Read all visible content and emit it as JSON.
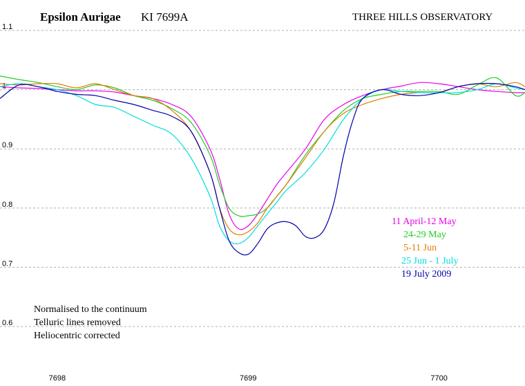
{
  "chart_data": {
    "type": "line",
    "title": "Epsilon Aurigae",
    "subtitle": "KI 7699A",
    "observatory": "THREE HILLS OBSERVATORY",
    "xlabel": "",
    "ylabel": "",
    "xlim": [
      7697.7,
      7700.45
    ],
    "ylim": [
      0.6,
      1.1
    ],
    "xticks": [
      7698,
      7699,
      7700
    ],
    "yticks": [
      0.6,
      0.7,
      0.8,
      0.9,
      1.0,
      1.1
    ],
    "ytick_labels": [
      "0.6",
      "0.7",
      "0.8",
      "0.9",
      "1",
      "1.1"
    ],
    "grid": "horizontal dashed",
    "legend_position": "right",
    "notes": [
      "Normalised to the continuum",
      "Telluric lines removed",
      "Heliocentric corrected"
    ],
    "series": [
      {
        "name": "11 April-12 May",
        "color": "#e600e6",
        "x": [
          7697.7,
          7697.8,
          7697.9,
          7698.0,
          7698.1,
          7698.2,
          7698.3,
          7698.4,
          7698.5,
          7698.6,
          7698.7,
          7698.8,
          7698.85,
          7698.9,
          7698.95,
          7699.0,
          7699.05,
          7699.1,
          7699.15,
          7699.2,
          7699.3,
          7699.4,
          7699.5,
          7699.6,
          7699.7,
          7699.8,
          7699.9,
          7700.0,
          7700.1,
          7700.2,
          7700.3,
          7700.4,
          7700.45
        ],
        "y": [
          1.005,
          1.003,
          1.002,
          1.0,
          0.998,
          0.998,
          0.996,
          0.99,
          0.985,
          0.975,
          0.955,
          0.9,
          0.85,
          0.79,
          0.765,
          0.77,
          0.79,
          0.815,
          0.84,
          0.86,
          0.9,
          0.95,
          0.975,
          0.99,
          1.0,
          1.006,
          1.012,
          1.01,
          1.005,
          1.0,
          0.997,
          0.995,
          0.995
        ]
      },
      {
        "name": "24-29 May",
        "color": "#22cc22",
        "x": [
          7697.7,
          7697.8,
          7697.9,
          7698.0,
          7698.1,
          7698.2,
          7698.3,
          7698.4,
          7698.5,
          7698.6,
          7698.7,
          7698.8,
          7698.85,
          7698.9,
          7698.95,
          7699.0,
          7699.05,
          7699.1,
          7699.15,
          7699.2,
          7699.3,
          7699.4,
          7699.5,
          7699.6,
          7699.7,
          7699.8,
          7699.9,
          7700.0,
          7700.1,
          7700.2,
          7700.3,
          7700.4,
          7700.45
        ],
        "y": [
          1.023,
          1.017,
          1.012,
          1.005,
          1.0,
          1.008,
          1.003,
          0.99,
          0.982,
          0.968,
          0.945,
          0.89,
          0.84,
          0.8,
          0.787,
          0.787,
          0.79,
          0.8,
          0.82,
          0.84,
          0.89,
          0.93,
          0.965,
          0.985,
          0.992,
          0.997,
          0.997,
          0.997,
          0.992,
          1.008,
          1.02,
          0.99,
          0.995
        ]
      },
      {
        "name": "5-11 Jun",
        "color": "#e07b00",
        "x": [
          7697.7,
          7697.8,
          7697.9,
          7698.0,
          7698.1,
          7698.2,
          7698.3,
          7698.4,
          7698.5,
          7698.6,
          7698.7,
          7698.8,
          7698.85,
          7698.9,
          7698.95,
          7699.0,
          7699.05,
          7699.1,
          7699.15,
          7699.2,
          7699.3,
          7699.4,
          7699.5,
          7699.6,
          7699.7,
          7699.8,
          7699.9,
          7700.0,
          7700.1,
          7700.2,
          7700.3,
          7700.4,
          7700.45
        ],
        "y": [
          1.01,
          1.008,
          1.01,
          1.01,
          1.003,
          1.01,
          1.0,
          0.99,
          0.985,
          0.965,
          0.93,
          0.86,
          0.8,
          0.765,
          0.755,
          0.76,
          0.775,
          0.8,
          0.82,
          0.84,
          0.885,
          0.93,
          0.96,
          0.975,
          0.985,
          0.992,
          0.995,
          0.995,
          1.005,
          1.01,
          1.005,
          1.012,
          1.005
        ]
      },
      {
        "name": "25 Jun - 1 July",
        "color": "#00dddd",
        "x": [
          7697.7,
          7697.8,
          7697.9,
          7698.0,
          7698.1,
          7698.2,
          7698.3,
          7698.4,
          7698.5,
          7698.6,
          7698.7,
          7698.8,
          7698.85,
          7698.9,
          7698.95,
          7699.0,
          7699.05,
          7699.1,
          7699.15,
          7699.2,
          7699.3,
          7699.4,
          7699.5,
          7699.6,
          7699.7,
          7699.8,
          7699.9,
          7700.0,
          7700.1,
          7700.2,
          7700.3,
          7700.4,
          7700.45
        ],
        "y": [
          1.005,
          1.01,
          1.005,
          1.0,
          0.99,
          0.975,
          0.97,
          0.955,
          0.94,
          0.925,
          0.885,
          0.82,
          0.77,
          0.745,
          0.74,
          0.75,
          0.77,
          0.79,
          0.81,
          0.83,
          0.86,
          0.9,
          0.95,
          0.985,
          1.0,
          0.997,
          0.995,
          0.995,
          0.995,
          1.0,
          1.01,
          1.003,
          1.0
        ]
      },
      {
        "name": "19 July  2009",
        "color": "#0000aa",
        "x": [
          7697.7,
          7697.8,
          7697.9,
          7698.0,
          7698.1,
          7698.2,
          7698.3,
          7698.4,
          7698.5,
          7698.6,
          7698.7,
          7698.8,
          7698.85,
          7698.9,
          7698.95,
          7699.0,
          7699.05,
          7699.1,
          7699.15,
          7699.2,
          7699.25,
          7699.3,
          7699.35,
          7699.4,
          7699.45,
          7699.5,
          7699.55,
          7699.6,
          7699.7,
          7699.8,
          7699.9,
          7700.0,
          7700.1,
          7700.2,
          7700.3,
          7700.4,
          7700.45
        ],
        "y": [
          0.985,
          1.008,
          1.005,
          0.997,
          0.992,
          0.99,
          0.982,
          0.975,
          0.965,
          0.955,
          0.93,
          0.86,
          0.8,
          0.745,
          0.725,
          0.722,
          0.74,
          0.765,
          0.775,
          0.777,
          0.77,
          0.752,
          0.75,
          0.765,
          0.81,
          0.89,
          0.95,
          0.985,
          1.0,
          0.992,
          0.99,
          0.995,
          1.005,
          1.01,
          1.01,
          1.005,
          1.0
        ]
      }
    ]
  }
}
